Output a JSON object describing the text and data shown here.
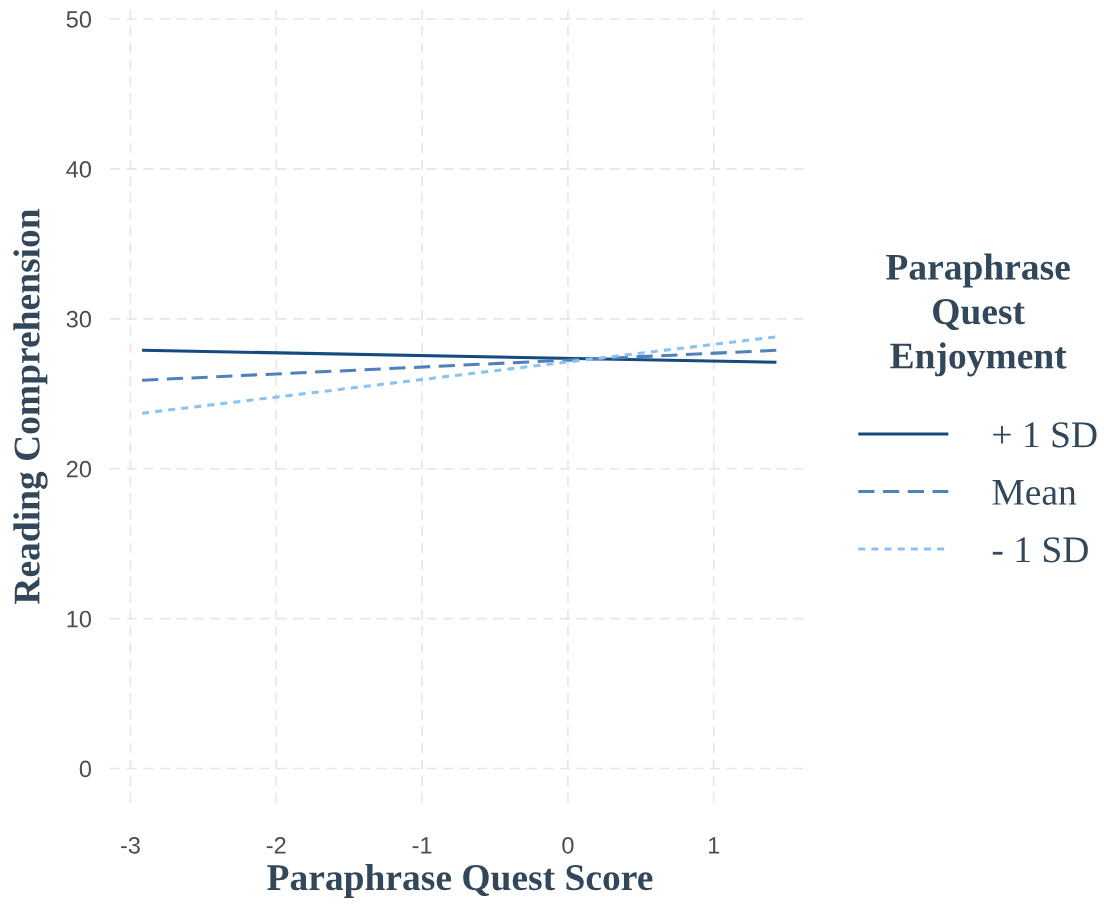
{
  "chart_data": {
    "type": "line",
    "xlabel": "Paraphrase Quest Score",
    "ylabel": "Reading Comprehension",
    "legend_title": "Paraphrase\nQuest\nEnjoyment",
    "x": [
      -2.92,
      1.43
    ],
    "series": [
      {
        "name": "+ 1 SD",
        "color": "#174a7e",
        "line_style": "solid",
        "values": [
          27.9,
          27.1
        ]
      },
      {
        "name": "Mean",
        "color": "#4f81bd",
        "line_style": "dashed",
        "values": [
          25.9,
          27.9
        ]
      },
      {
        "name": "- 1 SD",
        "color": "#8cc2ef",
        "line_style": "dotted",
        "values": [
          23.7,
          28.8
        ]
      }
    ],
    "xlim": [
      -3.14,
      1.66
    ],
    "ylim": [
      -2.3,
      50.6
    ],
    "xticks": [
      -3,
      -2,
      -1,
      0,
      1
    ],
    "yticks": [
      0,
      10,
      20,
      30,
      40,
      50
    ],
    "grid": true,
    "legend": "right",
    "marker": "none"
  }
}
